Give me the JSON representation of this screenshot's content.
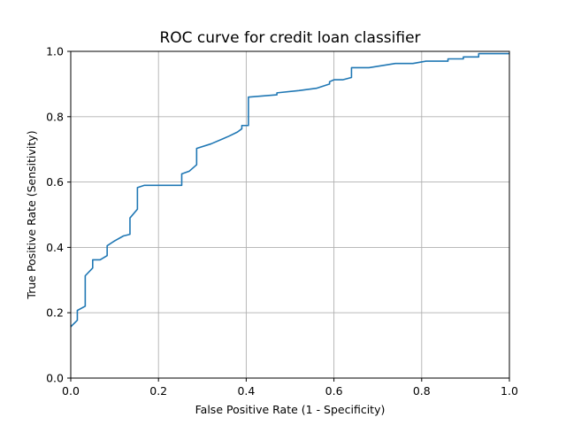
{
  "chart_data": {
    "type": "line",
    "title": "ROC curve for credit loan classifier",
    "xlabel": "False Positive Rate (1 - Specificity)",
    "ylabel": "True Positive Rate (Sensitivity)",
    "xlim": [
      0,
      1
    ],
    "ylim": [
      0,
      1
    ],
    "grid": true,
    "x_ticks": [
      "0.0",
      "0.2",
      "0.4",
      "0.6",
      "0.8",
      "1.0"
    ],
    "y_ticks": [
      "0.0",
      "0.2",
      "0.4",
      "0.6",
      "0.8",
      "1.0"
    ],
    "series": [
      {
        "color": "#1f77b4",
        "x": [
          0.0,
          0.015,
          0.015,
          0.033,
          0.033,
          0.05,
          0.05,
          0.067,
          0.083,
          0.083,
          0.1,
          0.12,
          0.135,
          0.135,
          0.152,
          0.152,
          0.168,
          0.253,
          0.253,
          0.27,
          0.287,
          0.287,
          0.32,
          0.36,
          0.38,
          0.39,
          0.39,
          0.405,
          0.405,
          0.47,
          0.47,
          0.52,
          0.56,
          0.59,
          0.59,
          0.6,
          0.62,
          0.64,
          0.64,
          0.68,
          0.74,
          0.78,
          0.81,
          0.86,
          0.86,
          0.895,
          0.895,
          0.93,
          0.93,
          1.0
        ],
        "y": [
          0.157,
          0.177,
          0.207,
          0.22,
          0.313,
          0.337,
          0.362,
          0.362,
          0.375,
          0.405,
          0.42,
          0.435,
          0.44,
          0.49,
          0.517,
          0.583,
          0.59,
          0.59,
          0.625,
          0.633,
          0.653,
          0.703,
          0.717,
          0.74,
          0.753,
          0.763,
          0.773,
          0.773,
          0.86,
          0.867,
          0.873,
          0.88,
          0.887,
          0.9,
          0.907,
          0.913,
          0.913,
          0.92,
          0.95,
          0.95,
          0.963,
          0.963,
          0.97,
          0.97,
          0.977,
          0.977,
          0.983,
          0.983,
          0.993,
          0.993
        ]
      }
    ]
  }
}
